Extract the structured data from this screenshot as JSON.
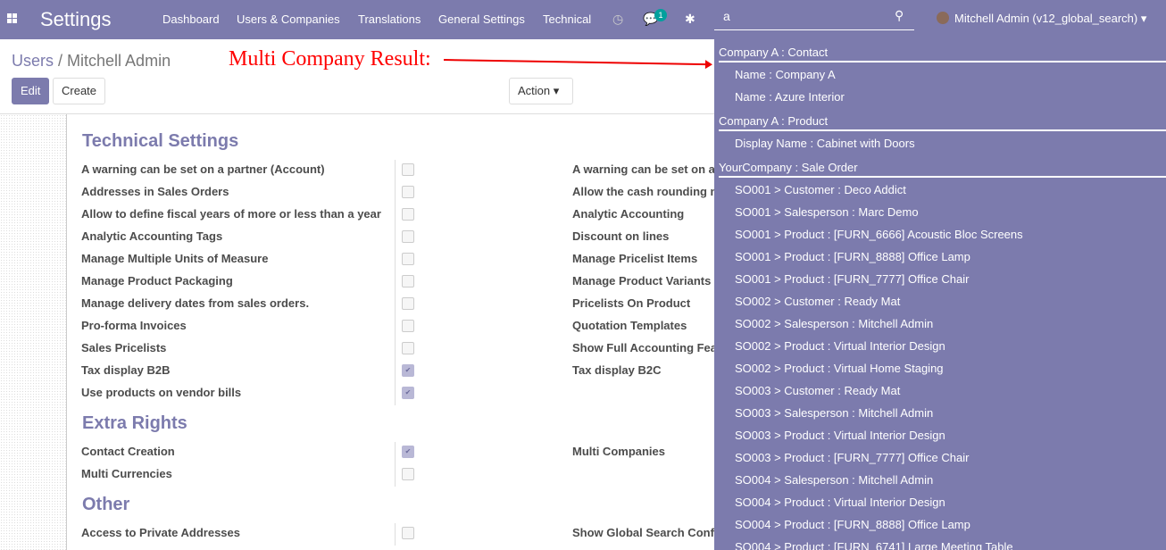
{
  "navbar": {
    "app_title": "Settings",
    "menu": [
      "Dashboard",
      "Users & Companies",
      "Translations",
      "General Settings",
      "Technical"
    ],
    "chat_count": "1",
    "search_value": "a",
    "user": "Mitchell Admin (v12_global_search)",
    "color": "#7c7bad"
  },
  "breadcrumb": {
    "parent": "Users",
    "current": "Mitchell Admin"
  },
  "annotation": "Multi Company Result:",
  "buttons": {
    "edit": "Edit",
    "create": "Create",
    "action": "Action"
  },
  "sections": [
    {
      "title": "Technical Settings",
      "left": [
        {
          "label": "A warning can be set on a partner (Account)",
          "checked": false
        },
        {
          "label": "Addresses in Sales Orders",
          "checked": false
        },
        {
          "label": "Allow to define fiscal years of more or less than a year",
          "checked": false
        },
        {
          "label": "Analytic Accounting Tags",
          "checked": false
        },
        {
          "label": "Manage Multiple Units of Measure",
          "checked": false
        },
        {
          "label": "Manage Product Packaging",
          "checked": false
        },
        {
          "label": "Manage delivery dates from sales orders.",
          "checked": false
        },
        {
          "label": "Pro-forma Invoices",
          "checked": false
        },
        {
          "label": "Sales Pricelists",
          "checked": false
        },
        {
          "label": "Tax display B2B",
          "checked": true
        },
        {
          "label": "Use products on vendor bills",
          "checked": true
        }
      ],
      "right": [
        "A warning can be set on a",
        "Allow the cash rounding m",
        "Analytic Accounting",
        "Discount on lines",
        "Manage Pricelist Items",
        "Manage Product Variants",
        "Pricelists On Product",
        "Quotation Templates",
        "Show Full Accounting Fea",
        "Tax display B2C"
      ]
    },
    {
      "title": "Extra Rights",
      "left": [
        {
          "label": "Contact Creation",
          "checked": true
        },
        {
          "label": "Multi Currencies",
          "checked": false
        }
      ],
      "right": [
        "Multi Companies"
      ]
    },
    {
      "title": "Other",
      "left": [
        {
          "label": "Access to Private Addresses",
          "checked": false
        }
      ],
      "right": [
        "Show Global Search Conf"
      ]
    }
  ],
  "search_results": [
    {
      "group": "Company A : Contact",
      "items": [
        "Name : Company A",
        "Name : Azure Interior"
      ]
    },
    {
      "group": "Company A : Product",
      "items": [
        "Display Name : Cabinet with Doors"
      ]
    },
    {
      "group": "YourCompany : Sale Order",
      "items": [
        "SO001 > Customer : Deco Addict",
        "SO001 > Salesperson : Marc Demo",
        "SO001 > Product : [FURN_6666] Acoustic Bloc Screens",
        "SO001 > Product : [FURN_8888] Office Lamp",
        "SO001 > Product : [FURN_7777] Office Chair",
        "SO002 > Customer : Ready Mat",
        "SO002 > Salesperson : Mitchell Admin",
        "SO002 > Product : Virtual Interior Design",
        "SO002 > Product : Virtual Home Staging",
        "SO003 > Customer : Ready Mat",
        "SO003 > Salesperson : Mitchell Admin",
        "SO003 > Product : Virtual Interior Design",
        "SO003 > Product : [FURN_7777] Office Chair",
        "SO004 > Salesperson : Mitchell Admin",
        "SO004 > Product : Virtual Interior Design",
        "SO004 > Product : [FURN_8888] Office Lamp",
        "SO004 > Product : [FURN_6741] Large Meeting Table"
      ]
    }
  ]
}
